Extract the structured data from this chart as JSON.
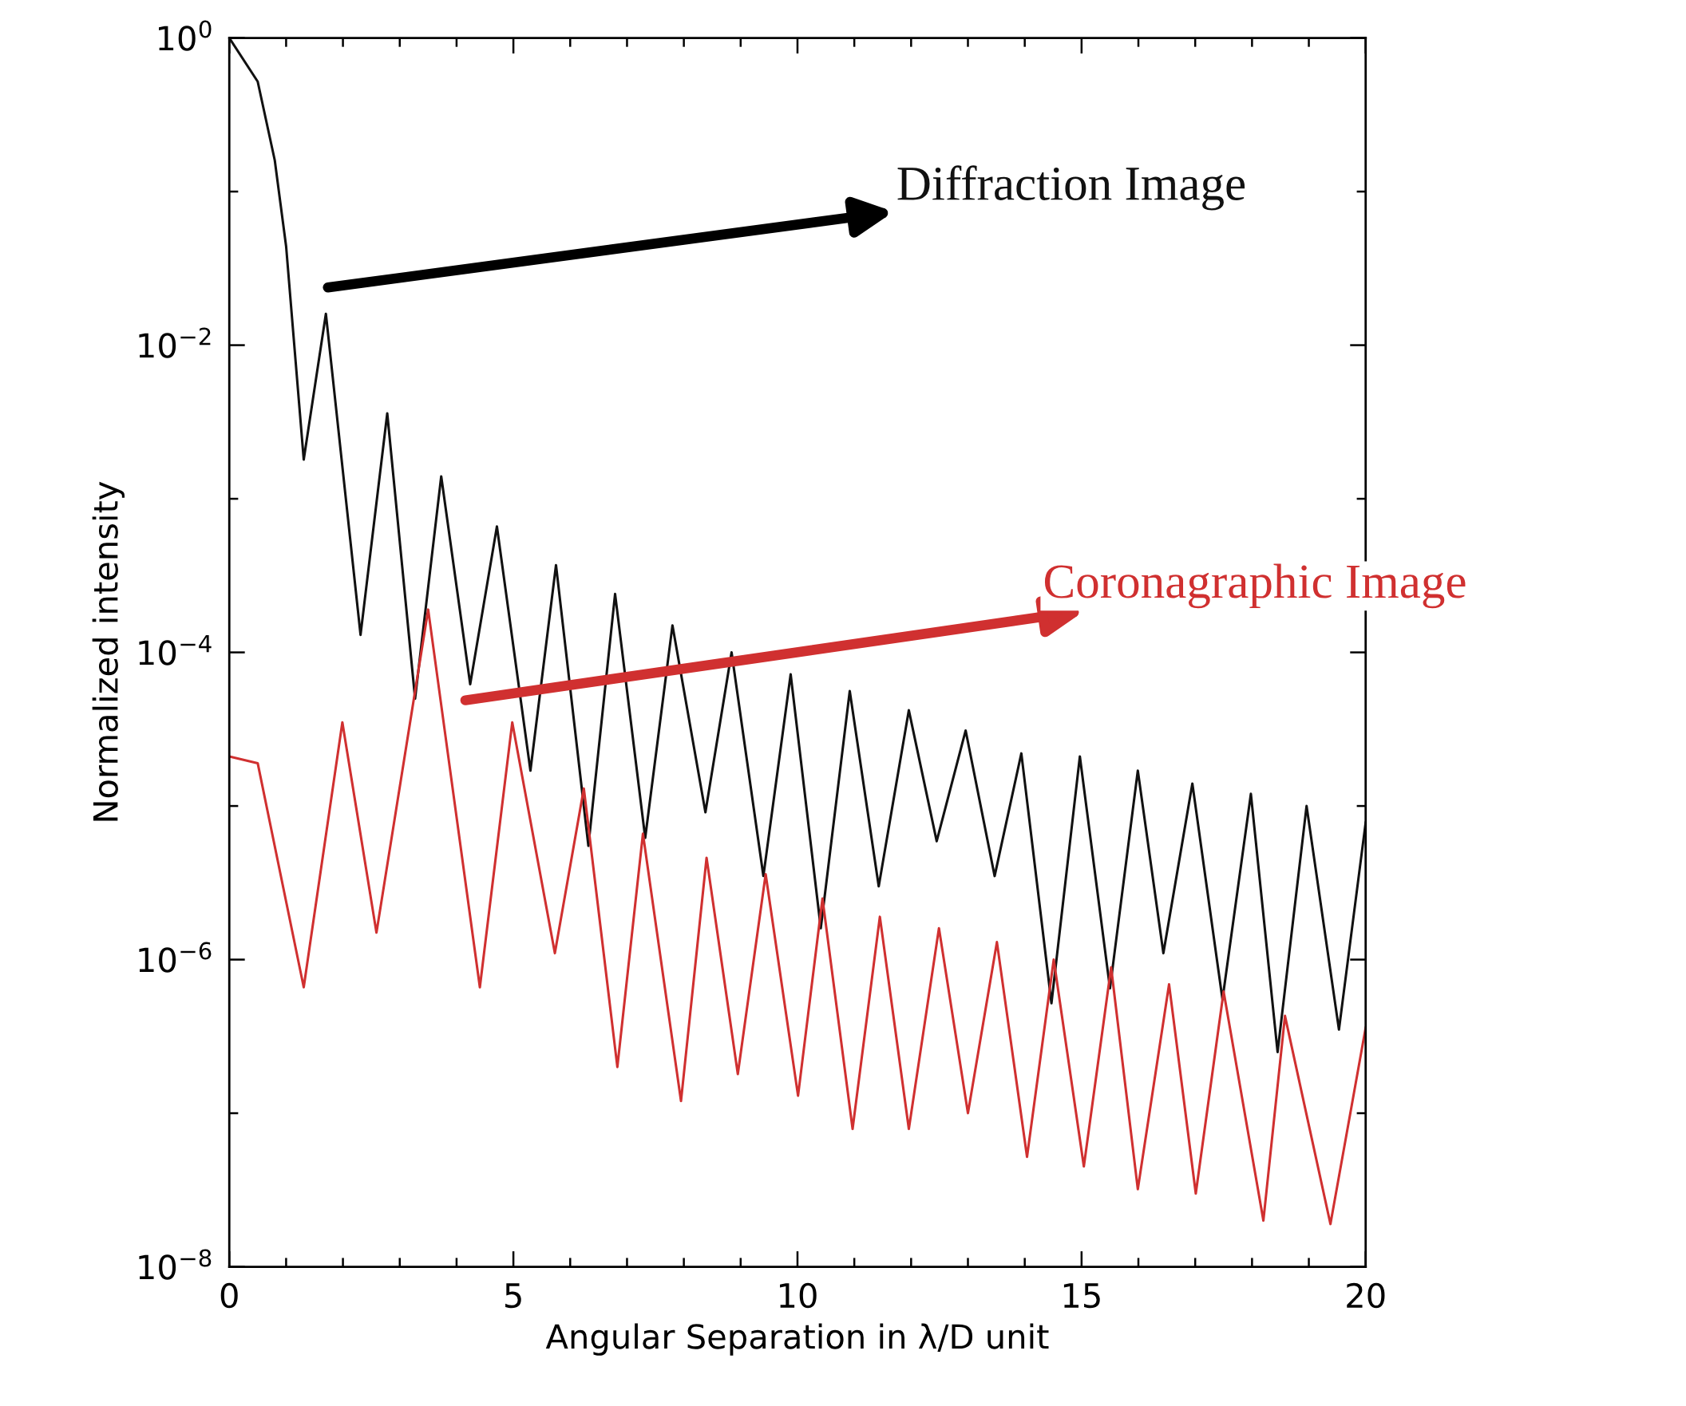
{
  "chart_data": {
    "type": "line",
    "xlabel": "Angular Separation in λ/D unit",
    "ylabel": "Normalized intensity",
    "log": "y",
    "xlim": [
      0,
      20
    ],
    "ylim": [
      1e-08,
      1
    ],
    "xticks": [
      0,
      {
        "value": 1,
        "label": null
      },
      {
        "value": 2,
        "label": null
      },
      {
        "value": 3,
        "label": null
      },
      {
        "value": 4,
        "label": null
      },
      5,
      {
        "value": 6,
        "label": null
      },
      {
        "value": 7,
        "label": null
      },
      {
        "value": 8,
        "label": null
      },
      {
        "value": 9,
        "label": null
      },
      10,
      {
        "value": 11,
        "label": null
      },
      {
        "value": 12,
        "label": null
      },
      {
        "value": 13,
        "label": null
      },
      {
        "value": 14,
        "label": null
      },
      15,
      {
        "value": 16,
        "label": null
      },
      {
        "value": 17,
        "label": null
      },
      {
        "value": 18,
        "label": null
      },
      {
        "value": 19,
        "label": null
      },
      20
    ],
    "yticks": [
      {
        "value": 1,
        "label": "10$^{0}$"
      },
      {
        "value": 0.1,
        "label": null
      },
      {
        "value": 0.01,
        "label": "10$^{−2}$"
      },
      {
        "value": 0.001,
        "label": null
      },
      {
        "value": 0.0001,
        "label": "10$^{−4}$"
      },
      {
        "value": 1e-05,
        "label": null
      },
      {
        "value": 1e-06,
        "label": "10$^{−6}$"
      },
      {
        "value": 1e-07,
        "label": null
      },
      {
        "value": 1e-08,
        "label": "10$^{−8}$"
      }
    ],
    "grid": false,
    "legend": false,
    "marker": "none",
    "line_style": "solid",
    "series": [
      {
        "name": "Diffraction Image",
        "color": "#111111",
        "x": [
          0,
          0.5,
          0.8,
          1.0,
          1.31,
          1.7,
          2.31,
          2.78,
          3.27,
          3.73,
          4.24,
          4.71,
          5.3,
          5.75,
          6.32,
          6.79,
          7.32,
          7.8,
          8.38,
          8.84,
          9.4,
          9.88,
          10.41,
          10.92,
          11.43,
          11.96,
          12.45,
          12.96,
          13.47,
          13.94,
          14.47,
          14.97,
          15.5,
          15.99,
          16.44,
          16.95,
          17.48,
          17.98,
          18.45,
          18.96,
          19.53,
          20
        ],
        "values": [
          1.0,
          0.52,
          0.16,
          0.044,
          0.0018,
          0.016,
          0.00013,
          0.0036,
          5e-05,
          0.0014,
          6.2e-05,
          0.00066,
          1.7e-05,
          0.00037,
          5.5e-06,
          0.00024,
          6.2e-06,
          0.00015,
          9.1e-06,
          0.0001,
          3.5e-06,
          7.2e-05,
          1.6e-06,
          5.6e-05,
          3e-06,
          4.2e-05,
          5.9e-06,
          3.1e-05,
          3.5e-06,
          2.2e-05,
          5.2e-07,
          2.1e-05,
          6.5e-07,
          1.7e-05,
          1.1e-06,
          1.4e-05,
          5.5e-07,
          1.2e-05,
          2.5e-07,
          1e-05,
          3.5e-07,
          7.8e-06
        ]
      },
      {
        "name": "Coronagraphic Image",
        "color": "#d03030",
        "x": [
          0,
          0.5,
          1.31,
          1.99,
          2.59,
          3.5,
          4.41,
          4.98,
          5.73,
          6.24,
          6.83,
          7.28,
          7.95,
          8.4,
          8.95,
          9.44,
          10.01,
          10.44,
          10.97,
          11.45,
          11.96,
          12.49,
          13.0,
          13.51,
          14.04,
          14.51,
          15.04,
          15.52,
          15.99,
          16.54,
          17.01,
          17.5,
          18.2,
          18.58,
          19.38,
          20
        ],
        "values": [
          2.1e-05,
          1.9e-05,
          6.6e-07,
          3.5e-05,
          1.5e-06,
          0.00019,
          6.6e-07,
          3.5e-05,
          1.1e-06,
          1.3e-05,
          2e-07,
          6.6e-06,
          1.2e-07,
          4.6e-06,
          1.8e-07,
          3.6e-06,
          1.3e-07,
          2.5e-06,
          7.9e-08,
          1.9e-06,
          7.9e-08,
          1.6e-06,
          1e-07,
          1.3e-06,
          5.2e-08,
          1e-06,
          4.5e-08,
          8.9e-07,
          3.2e-08,
          6.9e-07,
          3e-08,
          6.2e-07,
          2e-08,
          4.3e-07,
          1.9e-08,
          3.6e-07
        ]
      }
    ]
  }
}
